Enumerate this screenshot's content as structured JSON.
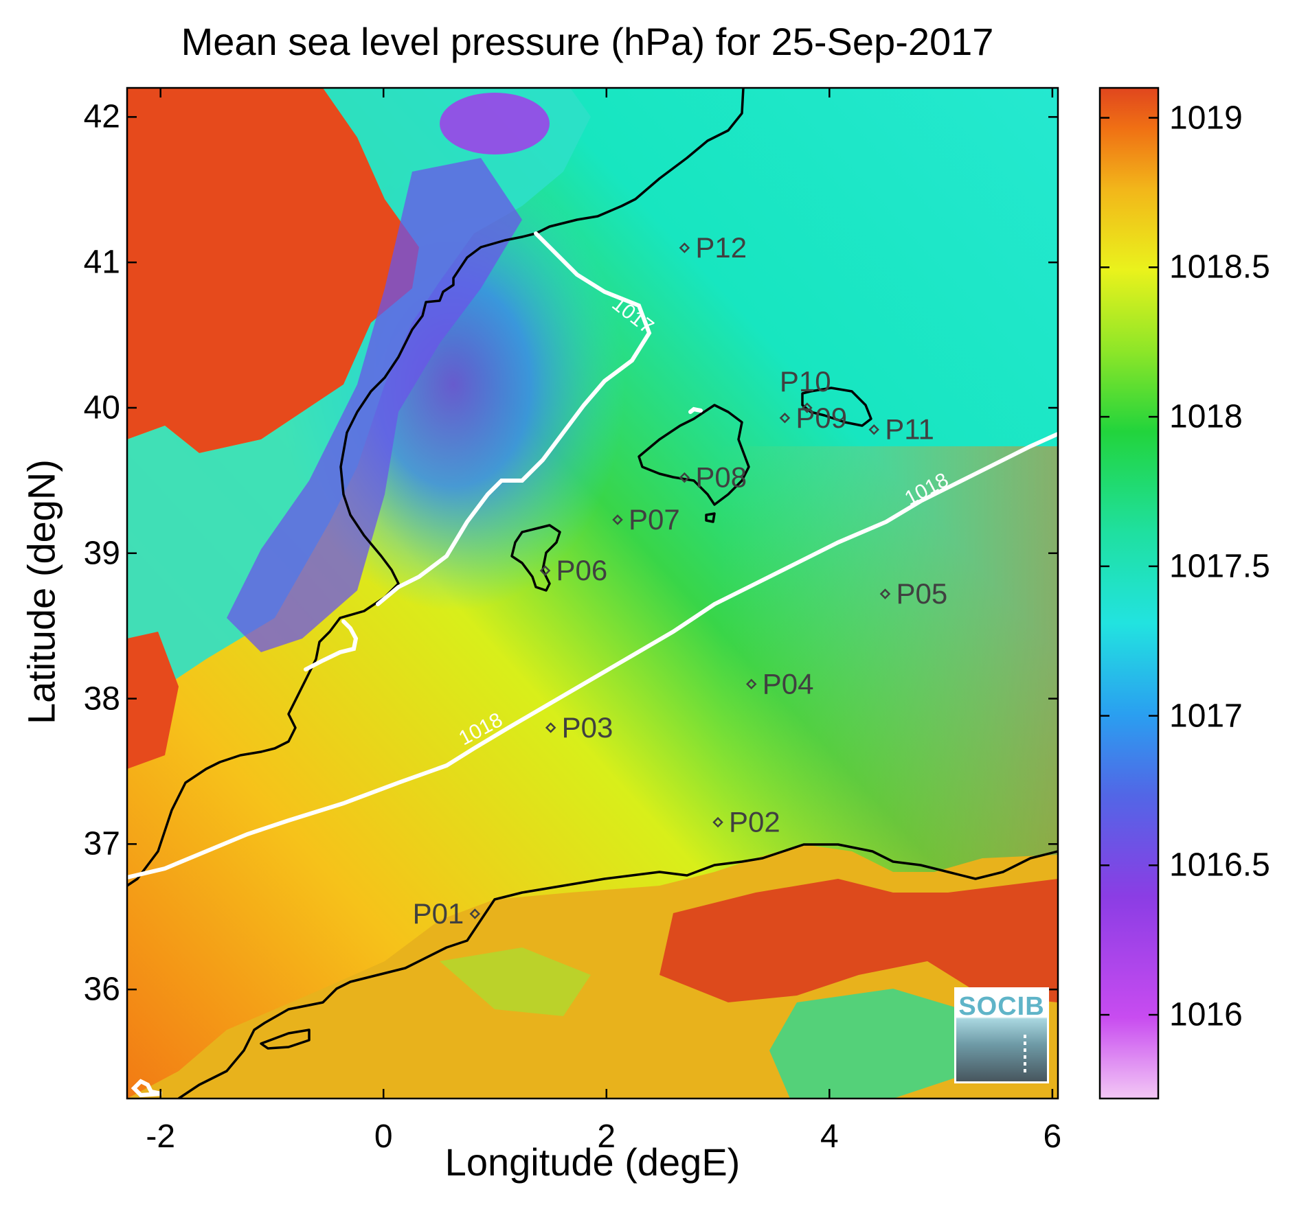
{
  "title": "Mean sea level pressure (hPa) for 25-Sep-2017",
  "map_data": {
    "type": "contour-map",
    "xlabel": "Longitude (degE)",
    "ylabel": "Latitude (degN)",
    "xlim": [
      -2.3,
      6.05
    ],
    "ylim": [
      35.25,
      42.2
    ],
    "xticks": [
      "-2",
      "0",
      "2",
      "4",
      "6"
    ],
    "xtick_values": [
      -2,
      0,
      2,
      4,
      6
    ],
    "yticks": [
      "36",
      "37",
      "38",
      "39",
      "40",
      "41",
      "42"
    ],
    "ytick_values": [
      36,
      37,
      38,
      39,
      40,
      41,
      42
    ],
    "contour_labels": [
      {
        "text": "1017",
        "lon": 2.2,
        "lat": 40.6
      },
      {
        "text": "1018",
        "lon": 4.9,
        "lat": 39.4
      },
      {
        "text": "1018",
        "lon": 0.9,
        "lat": 37.75
      }
    ],
    "stations": [
      {
        "label": "P01",
        "lon": 0.82,
        "lat": 36.52
      },
      {
        "label": "P02",
        "lon": 3.0,
        "lat": 37.15
      },
      {
        "label": "P03",
        "lon": 1.5,
        "lat": 37.8
      },
      {
        "label": "P04",
        "lon": 3.3,
        "lat": 38.1
      },
      {
        "label": "P05",
        "lon": 4.5,
        "lat": 38.72
      },
      {
        "label": "P06",
        "lon": 1.45,
        "lat": 38.88
      },
      {
        "label": "P07",
        "lon": 2.1,
        "lat": 39.23
      },
      {
        "label": "P08",
        "lon": 2.7,
        "lat": 39.52
      },
      {
        "label": "P09",
        "lon": 3.6,
        "lat": 39.93
      },
      {
        "label": "P10",
        "lon": 3.8,
        "lat": 40.0
      },
      {
        "label": "P11",
        "lon": 4.4,
        "lat": 39.85
      },
      {
        "label": "P12",
        "lon": 2.7,
        "lat": 41.1
      }
    ]
  },
  "colorbar": {
    "range": [
      1015.72,
      1019.1
    ],
    "ticks": [
      "1019",
      "1018.5",
      "1018",
      "1017.5",
      "1017",
      "1016.5",
      "1016"
    ],
    "tick_values": [
      1019,
      1018.5,
      1018,
      1017.5,
      1017,
      1016.5,
      1016
    ]
  },
  "logo": {
    "text": "SOCIB"
  }
}
